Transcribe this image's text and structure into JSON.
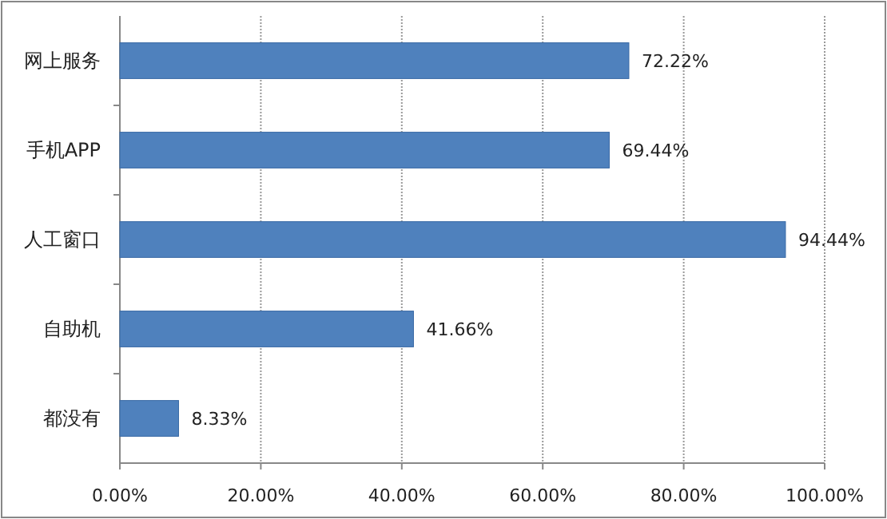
{
  "chart_data": {
    "type": "bar",
    "orientation": "horizontal",
    "categories": [
      "网上服务",
      "手机APP",
      "人工窗口",
      "自助机",
      "都没有"
    ],
    "values": [
      72.22,
      69.44,
      94.44,
      41.66,
      8.33
    ],
    "value_labels": [
      "72.22%",
      "69.44%",
      "94.44%",
      "41.66%",
      "8.33%"
    ],
    "color": "#4f81bd",
    "xlim": [
      0,
      100
    ],
    "xticks": [
      {
        "value": 0,
        "label": "0.00%"
      },
      {
        "value": 20,
        "label": "20.00%"
      },
      {
        "value": 40,
        "label": "40.00%"
      },
      {
        "value": 60,
        "label": "60.00%"
      },
      {
        "value": 80,
        "label": "80.00%"
      },
      {
        "value": 100,
        "label": "100.00%"
      }
    ],
    "grid": "x"
  }
}
